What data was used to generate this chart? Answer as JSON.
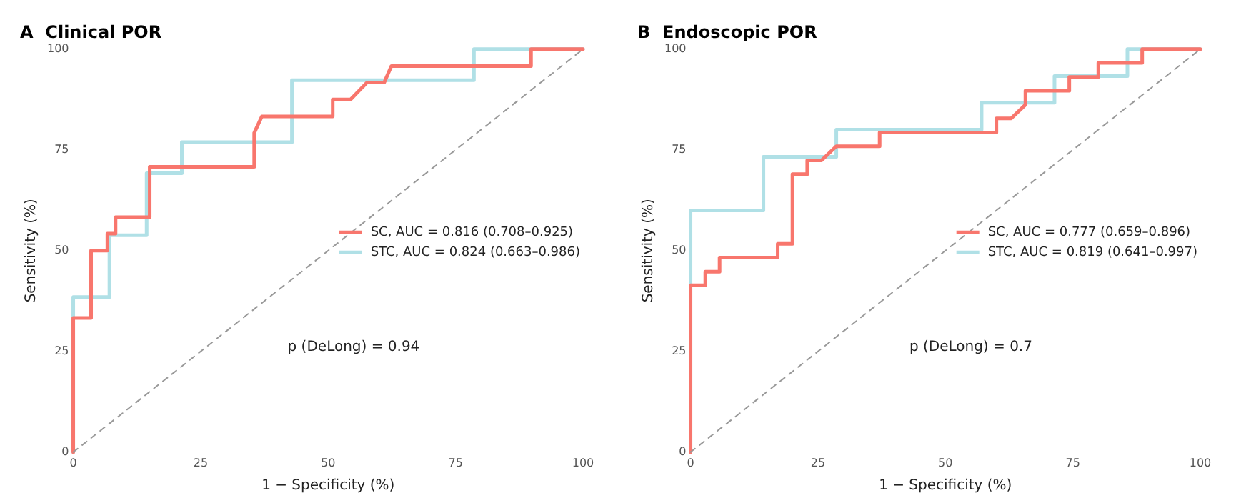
{
  "chart_data": [
    {
      "type": "line",
      "title": "A  Clinical POR",
      "xlabel": "1 − Specificity (%)",
      "ylabel": "Sensitivity (%)",
      "xlim": [
        0,
        100
      ],
      "ylim": [
        0,
        100
      ],
      "xticks": [
        0,
        25,
        50,
        75,
        100
      ],
      "yticks": [
        0,
        25,
        50,
        75,
        100
      ],
      "grid": false,
      "legend": "right",
      "marker": "none",
      "annotations": [
        "p (DeLong) = 0.94"
      ],
      "series": [
        {
          "type": "line",
          "color": "#999999",
          "line_style": "dashed",
          "x": [
            0,
            100
          ],
          "values": [
            0,
            100
          ]
        },
        {
          "name": "SC, AUC = 0.816 (0.708–0.925)",
          "color": "#f8766d",
          "line_style": "solid",
          "x": [
            0,
            0,
            3.5,
            3.5,
            6.7,
            6.7,
            8.3,
            8.3,
            15,
            15,
            35.5,
            35.5,
            37,
            50.9,
            50.9,
            54.4,
            57.6,
            61,
            62.4,
            89.8,
            89.8,
            100
          ],
          "values": [
            0,
            33.3,
            33.3,
            50,
            50,
            54.2,
            54.2,
            58.3,
            58.3,
            70.8,
            70.8,
            79.2,
            83.3,
            83.3,
            87.5,
            87.5,
            91.7,
            91.7,
            95.8,
            95.8,
            100,
            100
          ]
        },
        {
          "name": "STC, AUC = 0.824 (0.663–0.986)",
          "color": "#b0e0e6",
          "line_style": "solid",
          "x": [
            0,
            0,
            7.1,
            7.1,
            14.4,
            14.4,
            21.3,
            21.3,
            42.9,
            42.9,
            78.6,
            78.6,
            100
          ],
          "values": [
            0,
            38.5,
            38.5,
            53.8,
            53.8,
            69.2,
            69.2,
            76.9,
            76.9,
            92.3,
            92.3,
            100,
            100
          ]
        }
      ]
    },
    {
      "type": "line",
      "title": "B  Endoscopic POR",
      "xlabel": "1 − Specificity (%)",
      "ylabel": "Sensitivity (%)",
      "xlim": [
        0,
        100
      ],
      "ylim": [
        0,
        100
      ],
      "xticks": [
        0,
        25,
        50,
        75,
        100
      ],
      "yticks": [
        0,
        25,
        50,
        75,
        100
      ],
      "grid": false,
      "legend": "right",
      "marker": "none",
      "annotations": [
        "p (DeLong) = 0.7"
      ],
      "series": [
        {
          "type": "line",
          "color": "#999999",
          "line_style": "dashed",
          "x": [
            0,
            100
          ],
          "values": [
            0,
            100
          ]
        },
        {
          "name": "SC, AUC = 0.777 (0.659–0.896)",
          "color": "#f8766d",
          "line_style": "solid",
          "x": [
            0,
            0,
            2.9,
            2.9,
            5.7,
            5.7,
            17.1,
            17.1,
            20,
            20,
            22.9,
            22.9,
            25.7,
            28.6,
            37.1,
            37.1,
            60,
            60,
            62.9,
            65.7,
            65.7,
            74.3,
            74.3,
            80,
            80,
            88.6,
            88.6,
            100
          ],
          "values": [
            0,
            41.4,
            41.4,
            44.8,
            44.8,
            48.3,
            48.3,
            51.7,
            51.7,
            69,
            69,
            72.4,
            72.4,
            75.9,
            75.9,
            79.3,
            79.3,
            82.8,
            82.8,
            86.2,
            89.7,
            89.7,
            93.1,
            93.1,
            96.6,
            96.6,
            100,
            100
          ]
        },
        {
          "name": "STC, AUC = 0.819 (0.641–0.997)",
          "color": "#b0e0e6",
          "line_style": "solid",
          "x": [
            0,
            0,
            14.3,
            14.3,
            28.6,
            28.6,
            57.1,
            57.1,
            71.4,
            71.4,
            85.7,
            85.7,
            100
          ],
          "values": [
            0,
            60,
            60,
            73.3,
            73.3,
            80,
            80,
            86.7,
            86.7,
            93.3,
            93.3,
            100,
            100
          ]
        }
      ]
    }
  ]
}
